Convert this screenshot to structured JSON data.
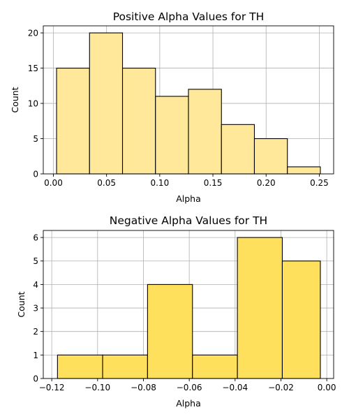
{
  "chart_data": [
    {
      "type": "bar",
      "title": "Positive Alpha Values for TH",
      "xlabel": "Alpha",
      "ylabel": "Count",
      "bar_color": "#ffe899",
      "bin_edges": [
        0.003,
        0.034,
        0.065,
        0.096,
        0.127,
        0.158,
        0.189,
        0.22,
        0.251
      ],
      "values": [
        15,
        20,
        15,
        11,
        12,
        7,
        5,
        1
      ],
      "xlim": [
        -0.0095,
        0.2635
      ],
      "ylim": [
        0,
        21
      ],
      "xticks": [
        0.0,
        0.05,
        0.1,
        0.15,
        0.2,
        0.25
      ],
      "xtick_labels": [
        "0.00",
        "0.05",
        "0.10",
        "0.15",
        "0.20",
        "0.25"
      ],
      "yticks": [
        0,
        5,
        10,
        15,
        20
      ],
      "ytick_labels": [
        "0",
        "5",
        "10",
        "15",
        "20"
      ],
      "grid": true
    },
    {
      "type": "bar",
      "title": "Negative Alpha Values for TH",
      "xlabel": "Alpha",
      "ylabel": "Count",
      "bar_color": "#ffe05c",
      "bin_edges": [
        -0.1175,
        -0.0978,
        -0.0782,
        -0.0586,
        -0.039,
        -0.0194,
        -0.0028
      ],
      "values": [
        1,
        1,
        4,
        1,
        6,
        5
      ],
      "xlim": [
        -0.1237,
        0.003
      ],
      "ylim": [
        0,
        6.3
      ],
      "xticks": [
        -0.12,
        -0.1,
        -0.08,
        -0.06,
        -0.04,
        -0.02,
        0.0
      ],
      "xtick_labels": [
        "−0.12",
        "−0.10",
        "−0.08",
        "−0.06",
        "−0.04",
        "−0.02",
        "0.00"
      ],
      "yticks": [
        0,
        1,
        2,
        3,
        4,
        5,
        6
      ],
      "ytick_labels": [
        "0",
        "1",
        "2",
        "3",
        "4",
        "5",
        "6"
      ],
      "grid": true
    }
  ]
}
